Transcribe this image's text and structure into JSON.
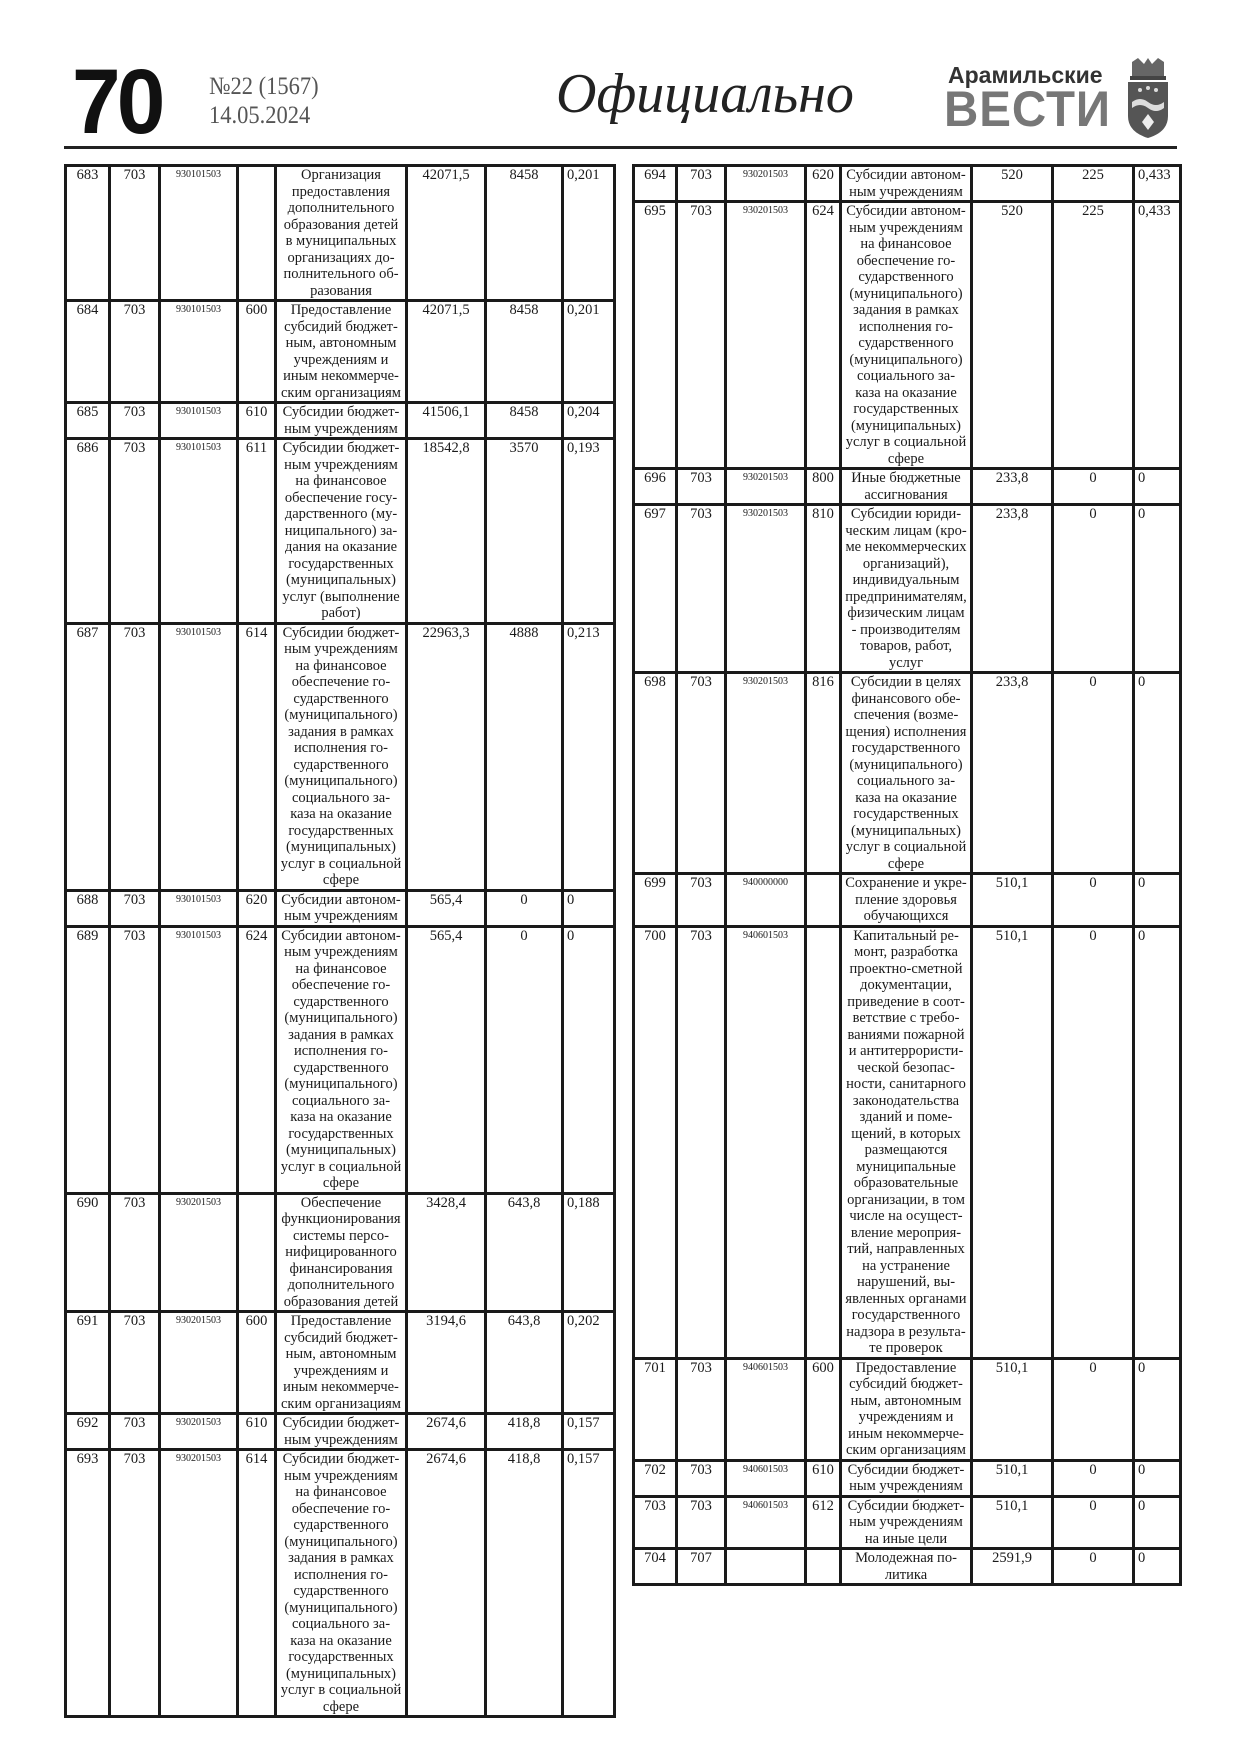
{
  "header": {
    "page_number": "70",
    "issue": "№22 (1567)",
    "date": "14.05.2024",
    "section": "Официально",
    "logo_top": "Арамильские",
    "logo_main": "ВЕСТИ",
    "emblem_icon": "coat-of-arms-icon"
  },
  "left_table": [
    {
      "n": "683",
      "sec": "703",
      "code": "930101503",
      "type": "",
      "desc": "Организация\nпредоставления\nдополнительного\nобразования детей\nв муниципальных\nорганизациях до-\nполнительного об-\nразования",
      "v1": "42071,5",
      "v2": "8458",
      "v3": "0,201"
    },
    {
      "n": "684",
      "sec": "703",
      "code": "930101503",
      "type": "600",
      "desc": "Предоставление\nсубсидий бюджет-\nным, автономным\nучреждениям и\nиным некоммерче-\nским организациям",
      "v1": "42071,5",
      "v2": "8458",
      "v3": "0,201"
    },
    {
      "n": "685",
      "sec": "703",
      "code": "930101503",
      "type": "610",
      "desc": "Субсидии бюджет-\nным учреждениям",
      "v1": "41506,1",
      "v2": "8458",
      "v3": "0,204"
    },
    {
      "n": "686",
      "sec": "703",
      "code": "930101503",
      "type": "611",
      "desc": "Субсидии бюджет-\nным учреждениям\nна финансовое\nобеспечение госу-\nдарственного (му-\nниципального) за-\nдания на оказание\nгосударственных\n(муниципальных)\nуслуг (выполнение\nработ)",
      "v1": "18542,8",
      "v2": "3570",
      "v3": "0,193"
    },
    {
      "n": "687",
      "sec": "703",
      "code": "930101503",
      "type": "614",
      "desc": "Субсидии бюджет-\nным учреждениям\nна финансовое\nобеспечение го-\nсударственного\n(муниципального)\nзадания в рамках\nисполнения го-\nсударственного\n(муниципального)\nсоциального за-\nказа на оказание\nгосударственных\n(муниципальных)\nуслуг в социальной\nсфере",
      "v1": "22963,3",
      "v2": "4888",
      "v3": "0,213"
    },
    {
      "n": "688",
      "sec": "703",
      "code": "930101503",
      "type": "620",
      "desc": "Субсидии автоном-\nным учреждениям",
      "v1": "565,4",
      "v2": "0",
      "v3": "0"
    },
    {
      "n": "689",
      "sec": "703",
      "code": "930101503",
      "type": "624",
      "desc": "Субсидии автоном-\nным учреждениям\nна финансовое\nобеспечение го-\nсударственного\n(муниципального)\nзадания в рамках\nисполнения го-\nсударственного\n(муниципального)\nсоциального за-\nказа на оказание\nгосударственных\n(муниципальных)\nуслуг в социальной\nсфере",
      "v1": "565,4",
      "v2": "0",
      "v3": "0"
    },
    {
      "n": "690",
      "sec": "703",
      "code": "930201503",
      "type": "",
      "desc": "Обеспечение\nфункционирования\nсистемы персо-\nнифицированного\nфинансирования\nдополнительного\nобразования детей",
      "v1": "3428,4",
      "v2": "643,8",
      "v3": "0,188"
    },
    {
      "n": "691",
      "sec": "703",
      "code": "930201503",
      "type": "600",
      "desc": "Предоставление\nсубсидий бюджет-\nным, автономным\nучреждениям и\nиным некоммерче-\nским организациям",
      "v1": "3194,6",
      "v2": "643,8",
      "v3": "0,202"
    },
    {
      "n": "692",
      "sec": "703",
      "code": "930201503",
      "type": "610",
      "desc": "Субсидии бюджет-\nным учреждениям",
      "v1": "2674,6",
      "v2": "418,8",
      "v3": "0,157"
    },
    {
      "n": "693",
      "sec": "703",
      "code": "930201503",
      "type": "614",
      "desc": "Субсидии бюджет-\nным учреждениям\nна финансовое\nобеспечение го-\nсударственного\n(муниципального)\nзадания в рамках\nисполнения го-\nсударственного\n(муниципального)\nсоциального за-\nказа на оказание\nгосударственных\n(муниципальных)\nуслуг в социальной\nсфере",
      "v1": "2674,6",
      "v2": "418,8",
      "v3": "0,157"
    }
  ],
  "right_table": [
    {
      "n": "694",
      "sec": "703",
      "code": "930201503",
      "type": "620",
      "desc": "Субсидии автоном-\nным учреждениям",
      "v1": "520",
      "v2": "225",
      "v3": "0,433"
    },
    {
      "n": "695",
      "sec": "703",
      "code": "930201503",
      "type": "624",
      "desc": "Субсидии автоном-\nным учреждениям\nна финансовое\nобеспечение го-\nсударственного\n(муниципального)\nзадания в рамках\nисполнения го-\nсударственного\n(муниципального)\nсоциального за-\nказа на оказание\nгосударственных\n(муниципальных)\nуслуг в социальной\nсфере",
      "v1": "520",
      "v2": "225",
      "v3": "0,433"
    },
    {
      "n": "696",
      "sec": "703",
      "code": "930201503",
      "type": "800",
      "desc": "Иные бюджетные\nассигнования",
      "v1": "233,8",
      "v2": "0",
      "v3": "0"
    },
    {
      "n": "697",
      "sec": "703",
      "code": "930201503",
      "type": "810",
      "desc": "Субсидии юриди-\nческим лицам (кро-\nме некоммерческих\nорганизаций),\nиндивидуальным\nпредпринимателям,\nфизическим лицам\n- производителям\nтоваров, работ,\nуслуг",
      "v1": "233,8",
      "v2": "0",
      "v3": "0"
    },
    {
      "n": "698",
      "sec": "703",
      "code": "930201503",
      "type": "816",
      "desc": "Субсидии в целях\nфинансового обе-\nспечения (возме-\nщения) исполнения\nгосударственного\n(муниципального)\nсоциального за-\nказа на оказание\nгосударственных\n(муниципальных)\nуслуг в социальной\nсфере",
      "v1": "233,8",
      "v2": "0",
      "v3": "0"
    },
    {
      "n": "699",
      "sec": "703",
      "code": "940000000",
      "type": "",
      "desc": "Сохранение и укре-\nпление здоровья\nобучающихся",
      "v1": "510,1",
      "v2": "0",
      "v3": "0"
    },
    {
      "n": "700",
      "sec": "703",
      "code": "940601503",
      "type": "",
      "desc": "Капитальный ре-\nмонт, разработка\nпроектно-сметной\nдокументации,\nприведение в соот-\nветствие с требо-\nваниями пожарной\nи антитеррористи-\nческой безопас-\nности, санитарного\nзаконодательства\nзданий и поме-\nщений, в которых\nразмещаются\nмуниципальные\nобразовательные\nорганизации, в том\nчисле на осущест-\nвление мероприя-\nтий, направленных\nна устранение\nнарушений, вы-\nявленных органами\nгосударственного\nнадзора в результа-\nте проверок",
      "v1": "510,1",
      "v2": "0",
      "v3": "0"
    },
    {
      "n": "701",
      "sec": "703",
      "code": "940601503",
      "type": "600",
      "desc": "Предоставление\nсубсидий бюджет-\nным, автономным\nучреждениям и\nиным некоммерче-\nским организациям",
      "v1": "510,1",
      "v2": "0",
      "v3": "0"
    },
    {
      "n": "702",
      "sec": "703",
      "code": "940601503",
      "type": "610",
      "desc": "Субсидии бюджет-\nным учреждениям",
      "v1": "510,1",
      "v2": "0",
      "v3": "0"
    },
    {
      "n": "703",
      "sec": "703",
      "code": "940601503",
      "type": "612",
      "desc": "Субсидии бюджет-\nным учреждениям\nна иные цели",
      "v1": "510,1",
      "v2": "0",
      "v3": "0"
    },
    {
      "n": "704",
      "sec": "707",
      "code": "",
      "type": "",
      "desc": "Молодежная по-\nлитика",
      "v1": "2591,9",
      "v2": "0",
      "v3": "0"
    }
  ]
}
